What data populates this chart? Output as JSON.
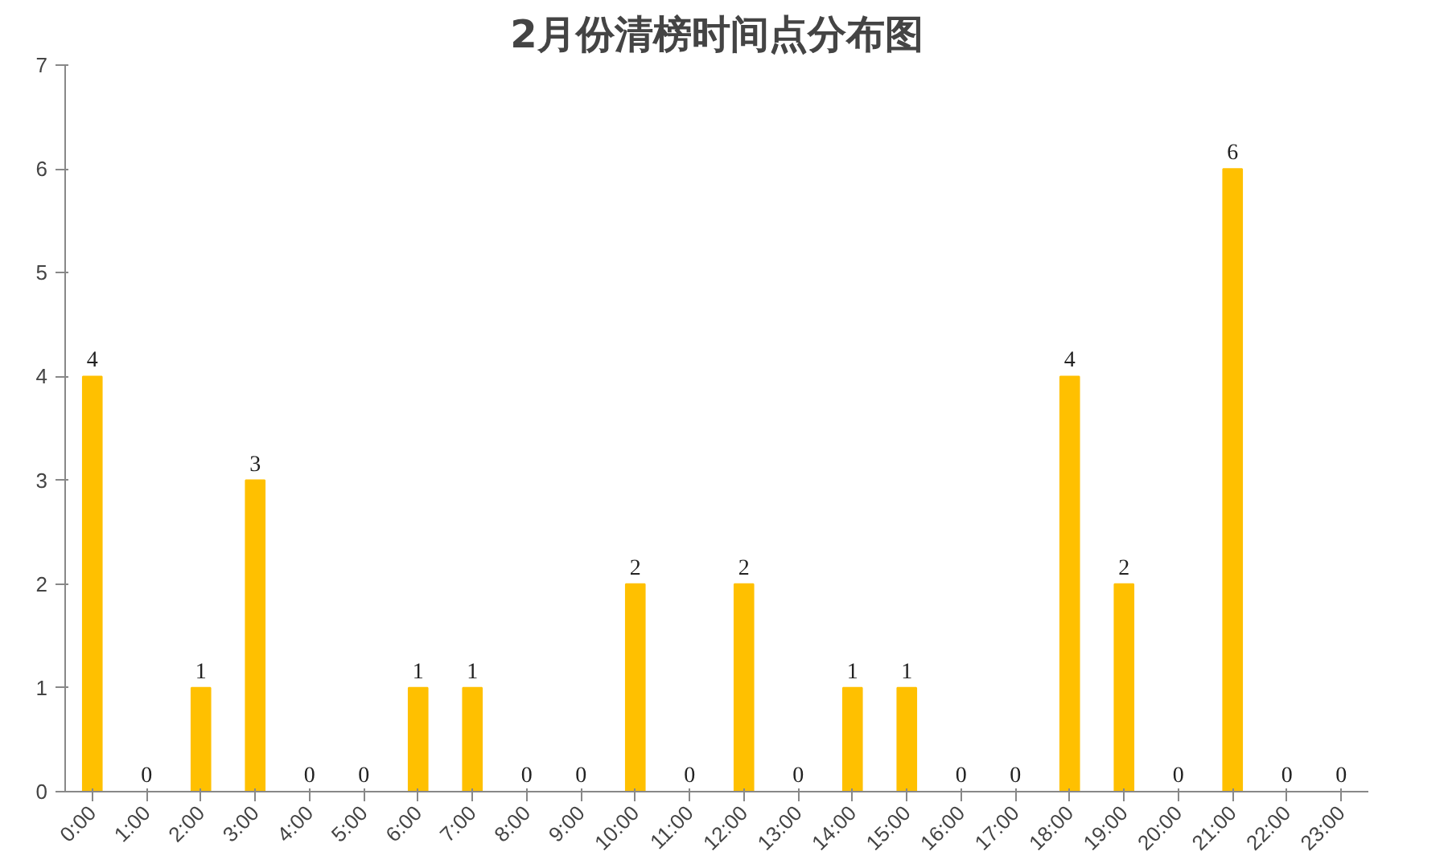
{
  "chart_data": {
    "type": "bar",
    "title": "2月份清榜时间点分布图",
    "categories": [
      "0:00",
      "1:00",
      "2:00",
      "3:00",
      "4:00",
      "5:00",
      "6:00",
      "7:00",
      "8:00",
      "9:00",
      "10:00",
      "11:00",
      "12:00",
      "13:00",
      "14:00",
      "15:00",
      "16:00",
      "17:00",
      "18:00",
      "19:00",
      "20:00",
      "21:00",
      "22:00",
      "23:00"
    ],
    "values": [
      4,
      0,
      1,
      3,
      0,
      0,
      1,
      1,
      0,
      0,
      2,
      0,
      2,
      0,
      1,
      1,
      0,
      0,
      4,
      2,
      0,
      6,
      0,
      0
    ],
    "color": "#ffc000",
    "ylim": [
      0,
      7
    ],
    "yticks": [
      0,
      1,
      2,
      3,
      4,
      5,
      6,
      7
    ],
    "grid": false,
    "data_labels": true
  }
}
